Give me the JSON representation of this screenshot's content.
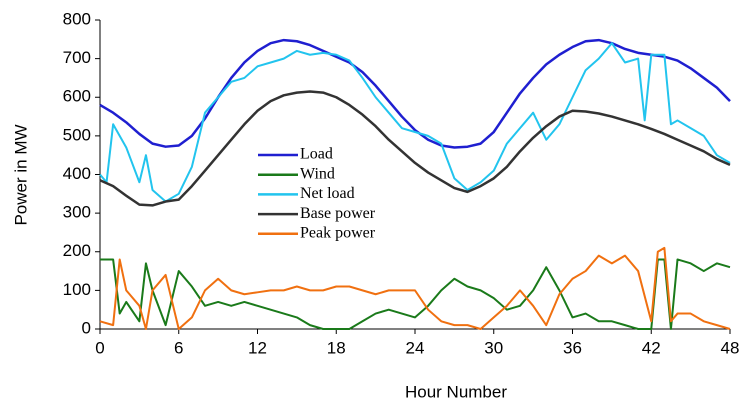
{
  "chart_data": {
    "type": "line",
    "xlabel": "Hour Number",
    "ylabel": "Power in MW",
    "xlim": [
      0,
      48
    ],
    "xticks": [
      0,
      6,
      12,
      18,
      24,
      30,
      36,
      42,
      48
    ],
    "ylim": [
      0,
      800
    ],
    "yticks": [
      0,
      100,
      200,
      300,
      400,
      500,
      600,
      700,
      800
    ],
    "grid": false,
    "legend": "center",
    "series": [
      {
        "name": "Load",
        "color": "#1f1fd0",
        "x": [
          0,
          1,
          2,
          3,
          4,
          5,
          6,
          7,
          8,
          9,
          10,
          11,
          12,
          13,
          14,
          15,
          16,
          17,
          18,
          19,
          20,
          21,
          22,
          23,
          24,
          25,
          26,
          27,
          28,
          29,
          30,
          31,
          32,
          33,
          34,
          35,
          36,
          37,
          38,
          39,
          40,
          41,
          42,
          43,
          44,
          45,
          46,
          47,
          48
        ],
        "values": [
          580,
          560,
          535,
          505,
          480,
          472,
          475,
          500,
          545,
          600,
          650,
          690,
          720,
          740,
          748,
          745,
          735,
          720,
          705,
          690,
          665,
          630,
          590,
          550,
          515,
          490,
          475,
          470,
          472,
          480,
          510,
          560,
          610,
          650,
          685,
          710,
          730,
          745,
          748,
          740,
          725,
          715,
          710,
          705,
          695,
          675,
          650,
          625,
          590
        ]
      },
      {
        "name": "Wind",
        "color": "#1a7a1a",
        "x": [
          0,
          1,
          1.5,
          2,
          3,
          3.5,
          4,
          5,
          6,
          7,
          8,
          9,
          10,
          11,
          12,
          13,
          14,
          15,
          16,
          17,
          18,
          19,
          20,
          21,
          22,
          23,
          24,
          25,
          26,
          27,
          28,
          29,
          30,
          31,
          32,
          33,
          34,
          35,
          36,
          37,
          38,
          39,
          40,
          41,
          42,
          42.5,
          43,
          43.5,
          44,
          45,
          46,
          47,
          48
        ],
        "values": [
          180,
          180,
          40,
          70,
          20,
          170,
          100,
          10,
          150,
          110,
          60,
          70,
          60,
          70,
          60,
          50,
          40,
          30,
          10,
          0,
          0,
          0,
          20,
          40,
          50,
          40,
          30,
          60,
          100,
          130,
          110,
          100,
          80,
          50,
          60,
          100,
          160,
          100,
          30,
          40,
          20,
          20,
          10,
          0,
          0,
          180,
          180,
          0,
          180,
          170,
          150,
          170,
          160
        ]
      },
      {
        "name": "Net load",
        "color": "#22c4ee",
        "x": [
          0,
          0.5,
          1,
          2,
          3,
          3.5,
          4,
          5,
          6,
          7,
          8,
          9,
          10,
          11,
          12,
          13,
          14,
          15,
          16,
          17,
          18,
          19,
          20,
          21,
          22,
          23,
          24,
          25,
          26,
          27,
          28,
          29,
          30,
          31,
          32,
          33,
          34,
          35,
          36,
          37,
          38,
          39,
          40,
          41,
          41.5,
          42,
          43,
          43.5,
          44,
          45,
          46,
          47,
          48
        ],
        "values": [
          400,
          380,
          530,
          470,
          380,
          450,
          360,
          330,
          350,
          420,
          560,
          600,
          640,
          650,
          680,
          690,
          700,
          720,
          710,
          715,
          710,
          695,
          650,
          600,
          560,
          520,
          510,
          500,
          480,
          390,
          360,
          380,
          410,
          480,
          520,
          560,
          490,
          530,
          600,
          670,
          700,
          740,
          690,
          700,
          540,
          710,
          710,
          530,
          540,
          520,
          500,
          450,
          430
        ]
      },
      {
        "name": "Base power",
        "color": "#333333",
        "x": [
          0,
          1,
          2,
          3,
          4,
          5,
          6,
          7,
          8,
          9,
          10,
          11,
          12,
          13,
          14,
          15,
          16,
          17,
          18,
          19,
          20,
          21,
          22,
          23,
          24,
          25,
          26,
          27,
          28,
          29,
          30,
          31,
          32,
          33,
          34,
          35,
          36,
          37,
          38,
          39,
          40,
          41,
          42,
          43,
          44,
          45,
          46,
          47,
          48
        ],
        "values": [
          385,
          370,
          345,
          322,
          320,
          330,
          335,
          370,
          410,
          450,
          490,
          530,
          565,
          590,
          605,
          612,
          615,
          612,
          600,
          580,
          555,
          525,
          490,
          460,
          430,
          405,
          385,
          365,
          355,
          370,
          390,
          420,
          460,
          495,
          525,
          550,
          565,
          563,
          558,
          550,
          540,
          530,
          518,
          505,
          490,
          475,
          460,
          440,
          425
        ]
      },
      {
        "name": "Peak power",
        "color": "#f07010",
        "x": [
          0,
          1,
          1.5,
          2,
          3,
          3.5,
          4,
          5,
          6,
          7,
          8,
          9,
          10,
          11,
          12,
          13,
          14,
          15,
          16,
          17,
          18,
          19,
          20,
          21,
          22,
          23,
          24,
          25,
          26,
          27,
          28,
          29,
          30,
          31,
          32,
          33,
          34,
          35,
          36,
          37,
          38,
          39,
          40,
          41,
          42,
          42.5,
          43,
          43.5,
          44,
          45,
          46,
          47,
          48
        ],
        "values": [
          20,
          10,
          180,
          100,
          60,
          0,
          100,
          140,
          0,
          30,
          100,
          130,
          100,
          90,
          95,
          100,
          100,
          110,
          100,
          100,
          110,
          110,
          100,
          90,
          100,
          100,
          100,
          50,
          20,
          10,
          10,
          0,
          30,
          60,
          100,
          60,
          10,
          90,
          130,
          150,
          190,
          170,
          190,
          150,
          20,
          200,
          210,
          20,
          40,
          40,
          20,
          10,
          0
        ]
      }
    ]
  }
}
